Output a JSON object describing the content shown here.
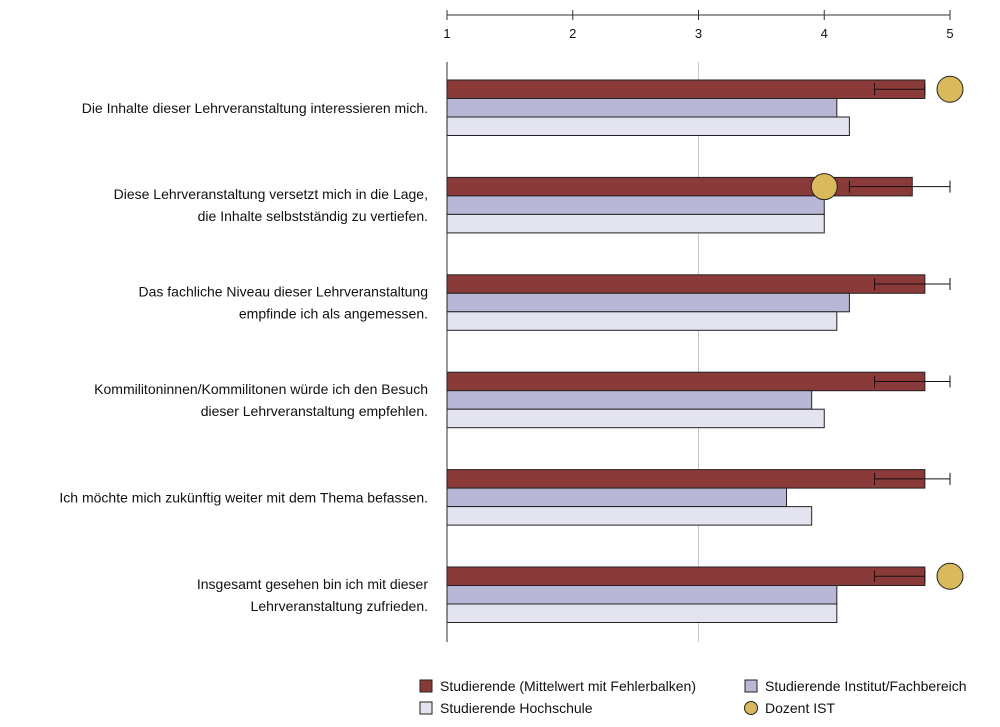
{
  "chart_data": {
    "type": "bar",
    "orientation": "horizontal",
    "xlim": [
      1,
      5
    ],
    "ticks": [
      "1",
      "2",
      "3",
      "4",
      "5"
    ],
    "grid": "vertical line at 3",
    "categories": [
      [
        "Die Inhalte dieser Lehrveranstaltung interessieren mich."
      ],
      [
        "Diese Lehrveranstaltung versetzt mich in die Lage,",
        "die Inhalte selbstständig zu vertiefen."
      ],
      [
        "Das fachliche Niveau dieser Lehrveranstaltung",
        "empfinde ich als angemessen."
      ],
      [
        "Kommilitoninnen/Kommilitonen würde ich den Besuch",
        "dieser Lehrveranstaltung empfehlen."
      ],
      [
        "Ich möchte mich zukünftig weiter mit dem Thema befassen."
      ],
      [
        "Insgesamt gesehen bin ich mit dieser",
        "Lehrveranstaltung zufrieden."
      ]
    ],
    "series": [
      {
        "name": "Studierende (Mittelwert mit Fehlerbalken)",
        "color": "#8b3a3a",
        "values": [
          4.8,
          4.7,
          4.8,
          4.8,
          4.8,
          4.8
        ],
        "error_low": [
          4.4,
          4.2,
          4.4,
          4.4,
          4.4,
          4.4
        ],
        "error_high": [
          4.8,
          5.0,
          5.0,
          5.0,
          5.0,
          4.8
        ]
      },
      {
        "name": "Studierende Institut/Fachbereich",
        "color": "#b8b8d6",
        "values": [
          4.1,
          4.0,
          4.2,
          3.9,
          3.7,
          4.1
        ]
      },
      {
        "name": "Studierende Hochschule",
        "color": "#e4e4f0",
        "values": [
          4.2,
          4.0,
          4.1,
          4.0,
          3.9,
          4.1
        ]
      }
    ],
    "dozent": {
      "name": "Dozent IST",
      "color": "#d9b95c",
      "values": [
        5.0,
        4.0,
        null,
        null,
        null,
        5.0
      ]
    },
    "legend_position": "bottom-right"
  }
}
